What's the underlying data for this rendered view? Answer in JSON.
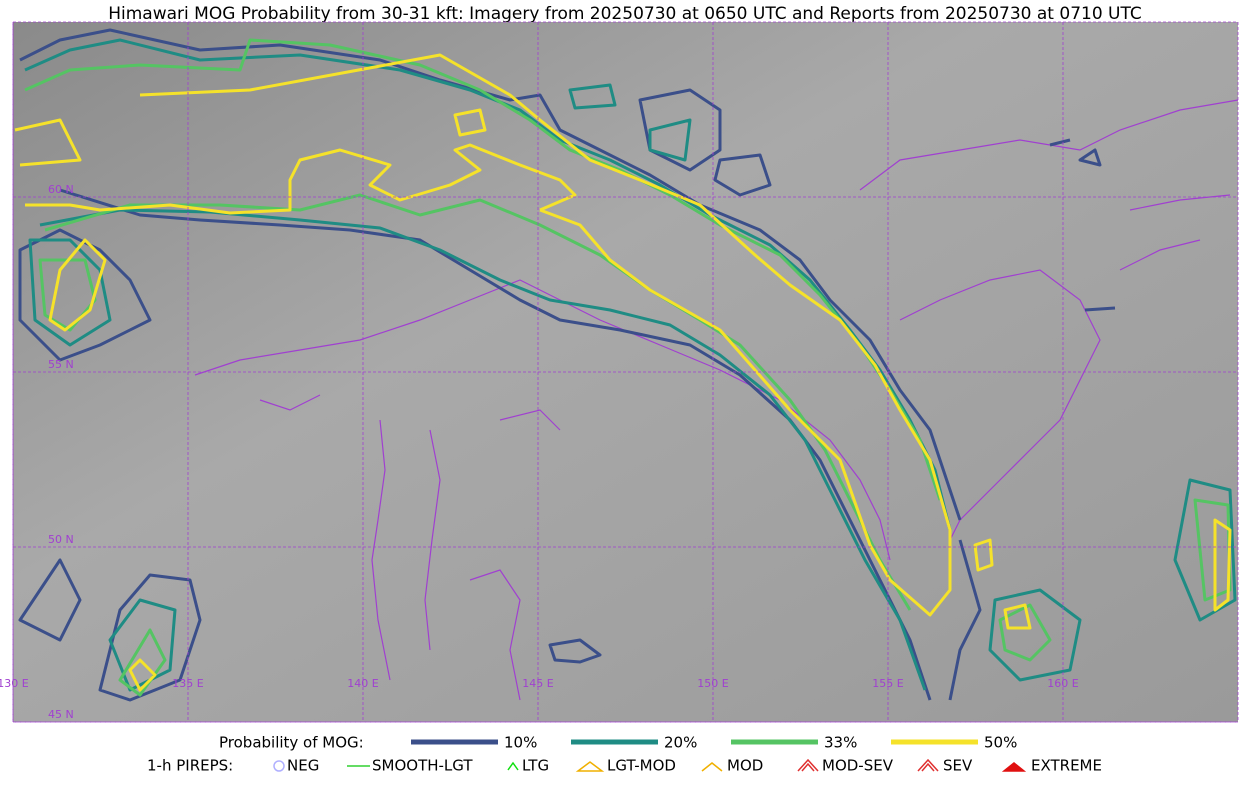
{
  "header": {
    "title": "Himawari MOG Probability from 30-31 kft: Imagery from 20250730 at 0650 UTC and Reports from 20250730 at 0710 UTC"
  },
  "map": {
    "lat_labels": [
      "60 N",
      "55 N",
      "50 N",
      "45 N"
    ],
    "lon_labels": [
      "130 E",
      "135 E",
      "140 E",
      "145 E",
      "150 E",
      "155 E",
      "160 E"
    ]
  },
  "legend": {
    "title": "Probability of MOG:",
    "items": [
      {
        "label": "10%",
        "color": "#3b4f8a"
      },
      {
        "label": "20%",
        "color": "#1f8c84"
      },
      {
        "label": "33%",
        "color": "#55c463"
      },
      {
        "label": "50%",
        "color": "#f5e22a"
      }
    ]
  },
  "pireps": {
    "title": "1-h PIREPS:",
    "items": [
      {
        "label": "NEG"
      },
      {
        "label": "SMOOTH-LGT"
      },
      {
        "label": "LTG"
      },
      {
        "label": "LGT-MOD"
      },
      {
        "label": "MOD"
      },
      {
        "label": "MOD-SEV"
      },
      {
        "label": "SEV"
      },
      {
        "label": "EXTREME"
      }
    ]
  }
}
